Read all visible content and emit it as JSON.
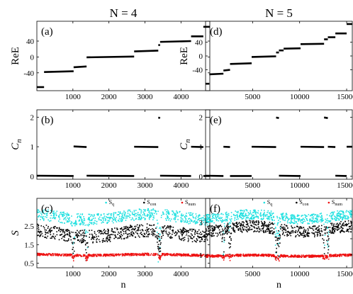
{
  "figure": {
    "colors": {
      "data": "#000000",
      "cyan": "#1fe0e0",
      "red": "#ee1111"
    }
  },
  "chart_data": [
    {
      "id": "a",
      "panel_label": "(a)",
      "type": "scatter",
      "column_title": "N = 4",
      "ylabel": "ReE",
      "xlabel": "",
      "xlim": [
        0,
        4800
      ],
      "ylim": [
        -85,
        90
      ],
      "xticks": [
        1000,
        2000,
        3000,
        4000
      ],
      "yticks": [
        -40,
        0,
        40
      ],
      "xticklabels": [
        "1000",
        "2000",
        "3000",
        "4000"
      ],
      "yticklabels": [
        "-40",
        "0",
        "40"
      ],
      "series": [
        {
          "segments": [
            [
              0,
              200,
              -76,
              -76
            ],
            [
              200,
              1020,
              -38,
              -36
            ],
            [
              1020,
              1380,
              -26,
              -24
            ],
            [
              1380,
              2700,
              -1,
              1
            ],
            [
              2700,
              3370,
              14,
              16
            ],
            [
              3370,
              3420,
              30,
              30
            ],
            [
              3420,
              4280,
              38,
              40
            ],
            [
              4280,
              4620,
              52,
              52
            ],
            [
              4620,
              4800,
              76,
              76
            ]
          ]
        }
      ]
    },
    {
      "id": "b",
      "panel_label": "(b)",
      "type": "scatter",
      "ylabel": "C",
      "ylabel_sub": "n",
      "xlabel": "",
      "xlim": [
        0,
        4800
      ],
      "ylim": [
        -0.1,
        2.25
      ],
      "xticks": [
        1000,
        2000,
        3000,
        4000
      ],
      "yticks": [
        0,
        1,
        2
      ],
      "xticklabels": [
        "1000",
        "2000",
        "3000",
        "4000"
      ],
      "yticklabels": [
        "0",
        "1",
        "2"
      ],
      "series": [
        {
          "segments": [
            [
              0,
              1020,
              0.02,
              0.01
            ],
            [
              1020,
              1380,
              1.01,
              0.99
            ],
            [
              1380,
              2700,
              0.02,
              0.01
            ],
            [
              2700,
              3370,
              1.0,
              0.99
            ],
            [
              3370,
              3420,
              1.99,
              1.97
            ],
            [
              3420,
              4280,
              0.02,
              0.01
            ],
            [
              4280,
              4620,
              1.0,
              0.99
            ],
            [
              4620,
              4800,
              0.01,
              0.01
            ]
          ]
        }
      ]
    },
    {
      "id": "c",
      "panel_label": "(c)",
      "type": "scatter",
      "ylabel": "S",
      "xlabel": "n",
      "xlim": [
        0,
        4800
      ],
      "ylim": [
        0.25,
        4.0
      ],
      "xticks": [
        1000,
        2000,
        3000,
        4000
      ],
      "yticks": [
        0.5,
        1.5,
        2.5
      ],
      "xticklabels": [
        "1000",
        "2000",
        "3000",
        "4000"
      ],
      "yticklabels": [
        "0.5",
        "1.5",
        "2.5"
      ],
      "legend": [
        {
          "label": "S",
          "sub": "q",
          "color": "#1fe0e0"
        },
        {
          "label": "S",
          "sub": "con",
          "color": "#000000"
        },
        {
          "label": "S",
          "sub": "num",
          "color": "#ee1111"
        }
      ],
      "dips": [
        1020,
        1380,
        3370,
        3420
      ],
      "series": [
        {
          "name": "Sq",
          "color": "#1fe0e0",
          "base": 3.0,
          "noise": 0.3
        },
        {
          "name": "Scon",
          "color": "#000000",
          "base": 2.1,
          "noise": 0.35
        },
        {
          "name": "Snum",
          "color": "#ee1111",
          "base": 0.95,
          "noise": 0.06
        }
      ]
    },
    {
      "id": "d",
      "panel_label": "(d)",
      "type": "scatter",
      "column_title": "N = 5",
      "ylabel": "ReE",
      "xlabel": "",
      "xlim": [
        0,
        15600
      ],
      "ylim": [
        -100,
        100
      ],
      "xticks": [
        5000,
        10000,
        15000
      ],
      "yticks": [
        -40,
        0,
        40
      ],
      "xticklabels": [
        "5000",
        "10000",
        "15000"
      ],
      "yticklabels": [
        "-40",
        "0",
        "40"
      ],
      "series": [
        {
          "segments": [
            [
              0,
              400,
              -80,
              -80
            ],
            [
              400,
              1900,
              -53,
              -51
            ],
            [
              1900,
              2600,
              -42,
              -40
            ],
            [
              2600,
              4900,
              -23,
              -21
            ],
            [
              4900,
              7500,
              -3,
              -1
            ],
            [
              7500,
              7800,
              10,
              10
            ],
            [
              7800,
              8300,
              16,
              16
            ],
            [
              8300,
              10100,
              21,
              22
            ],
            [
              10100,
              12600,
              34,
              35
            ],
            [
              12600,
              13000,
              48,
              48
            ],
            [
              13000,
              13800,
              54,
              54
            ],
            [
              13800,
              15000,
              65,
              65
            ],
            [
              15000,
              15600,
              92,
              92
            ]
          ]
        }
      ]
    },
    {
      "id": "e",
      "panel_label": "(e)",
      "type": "scatter",
      "ylabel": "C",
      "ylabel_sub": "n",
      "xlabel": "",
      "xlim": [
        0,
        15600
      ],
      "ylim": [
        -0.1,
        2.25
      ],
      "xticks": [
        5000,
        10000,
        15000
      ],
      "yticks": [
        0,
        1,
        2
      ],
      "xticklabels": [
        "5000",
        "10000",
        "15000"
      ],
      "yticklabels": [
        "0",
        "1",
        "2"
      ],
      "series": [
        {
          "segments": [
            [
              0,
              1900,
              0.02,
              0.01
            ],
            [
              1900,
              2600,
              1.0,
              0.99
            ],
            [
              2600,
              4900,
              0.01,
              0.01
            ],
            [
              4900,
              7500,
              1.0,
              0.99
            ],
            [
              7500,
              7800,
              1.99,
              1.97
            ],
            [
              7800,
              10100,
              0.02,
              0.01
            ],
            [
              10100,
              12600,
              1.0,
              0.99
            ],
            [
              12600,
              13000,
              1.99,
              1.97
            ],
            [
              13000,
              13800,
              1.0,
              0.99
            ],
            [
              13800,
              15000,
              0.02,
              0.01
            ],
            [
              15000,
              15600,
              1.0,
              1.0
            ]
          ]
        }
      ]
    },
    {
      "id": "f",
      "panel_label": "(f)",
      "type": "scatter",
      "ylabel": "S",
      "xlabel": "n",
      "xlim": [
        0,
        15600
      ],
      "ylim": [
        0.2,
        4.5
      ],
      "xticks": [
        5000,
        10000,
        15000
      ],
      "yticks": [
        1,
        2,
        3
      ],
      "xticklabels": [
        "5000",
        "10000",
        "15000"
      ],
      "yticklabels": [
        "1",
        "2",
        "3"
      ],
      "legend": [
        {
          "label": "S",
          "sub": "q",
          "color": "#1fe0e0"
        },
        {
          "label": "S",
          "sub": "con",
          "color": "#000000"
        },
        {
          "label": "S",
          "sub": "num",
          "color": "#ee1111"
        }
      ],
      "dips": [
        1900,
        2600,
        7500,
        7800,
        12600,
        13000
      ],
      "series": [
        {
          "name": "Sq",
          "color": "#1fe0e0",
          "base": 3.35,
          "noise": 0.3
        },
        {
          "name": "Scon",
          "color": "#000000",
          "base": 2.6,
          "noise": 0.35
        },
        {
          "name": "Snum",
          "color": "#ee1111",
          "base": 0.95,
          "noise": 0.07
        }
      ]
    }
  ]
}
